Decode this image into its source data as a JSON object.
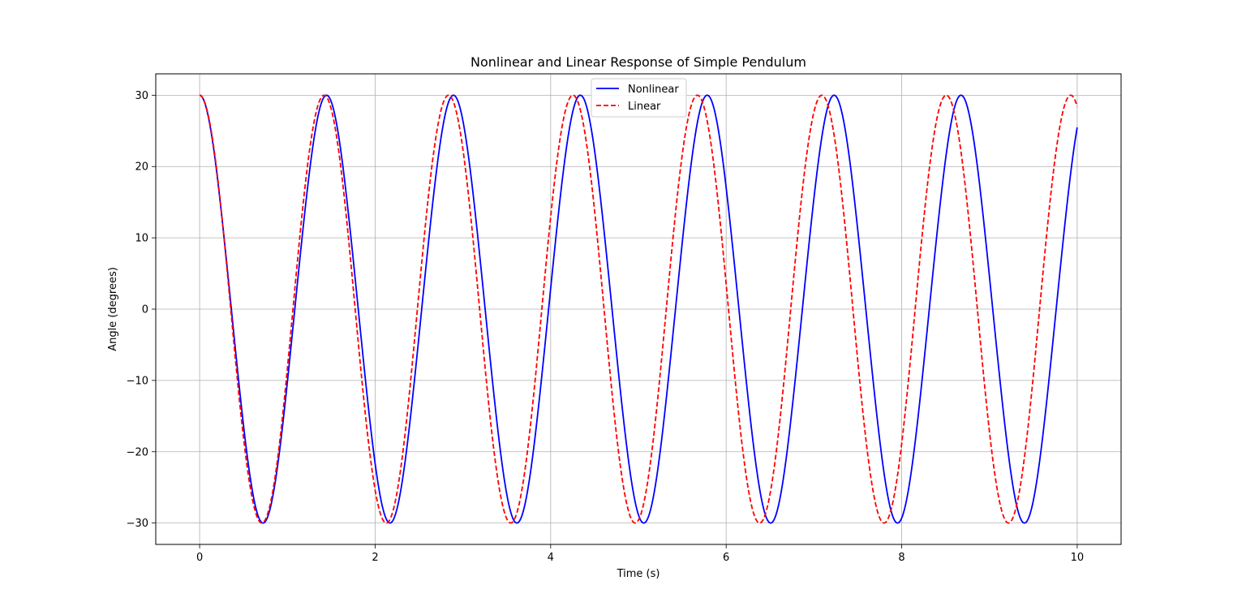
{
  "chart_data": {
    "type": "line",
    "title": "Nonlinear and Linear Response of Simple Pendulum",
    "xlabel": "Time (s)",
    "ylabel": "Angle (degrees)",
    "xlim": [
      -0.5,
      10.5
    ],
    "ylim": [
      -33,
      33
    ],
    "xticks": [
      0,
      2,
      4,
      6,
      8,
      10
    ],
    "xtick_labels": [
      "0",
      "2",
      "4",
      "6",
      "8",
      "10"
    ],
    "yticks": [
      -30,
      -20,
      -10,
      0,
      10,
      20,
      30
    ],
    "ytick_labels": [
      "−30",
      "−20",
      "−10",
      "0",
      "10",
      "20",
      "30"
    ],
    "grid": true,
    "legend_position": "top-center",
    "x_range": [
      0,
      10
    ],
    "series": [
      {
        "name": "Nonlinear",
        "color": "#0000ff",
        "line_style": "solid",
        "amplitude": 30,
        "period": 1.446,
        "points": [
          [
            0,
            30
          ],
          [
            0.361,
            0
          ],
          [
            0.723,
            -30
          ],
          [
            1.085,
            0
          ],
          [
            1.446,
            30
          ],
          [
            2.169,
            -30
          ],
          [
            2.892,
            30
          ],
          [
            3.615,
            -30
          ],
          [
            4.338,
            30
          ],
          [
            5.061,
            -30
          ],
          [
            5.784,
            30
          ],
          [
            6.507,
            -30
          ],
          [
            7.23,
            30
          ],
          [
            7.953,
            -30
          ],
          [
            8.676,
            30
          ],
          [
            9.399,
            -30
          ],
          [
            10,
            27
          ]
        ]
      },
      {
        "name": "Linear",
        "color": "#ff0000",
        "line_style": "dashed",
        "amplitude": 30,
        "period": 1.418,
        "points": [
          [
            0,
            30
          ],
          [
            0.355,
            0
          ],
          [
            0.709,
            -30
          ],
          [
            1.064,
            0
          ],
          [
            1.418,
            30
          ],
          [
            2.127,
            -30
          ],
          [
            2.836,
            30
          ],
          [
            3.545,
            -30
          ],
          [
            4.254,
            30
          ],
          [
            4.963,
            -30
          ],
          [
            5.672,
            30
          ],
          [
            6.381,
            -30
          ],
          [
            7.09,
            30
          ],
          [
            7.799,
            -30
          ],
          [
            8.508,
            30
          ],
          [
            9.217,
            -30
          ],
          [
            9.926,
            30
          ],
          [
            10,
            29.2
          ]
        ]
      }
    ]
  }
}
